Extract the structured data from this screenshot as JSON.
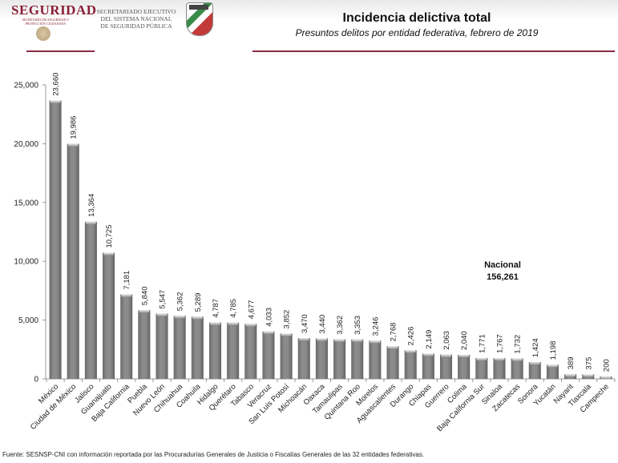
{
  "header": {
    "logo_text": "SEGURIDAD",
    "logo_subtext": "SECRETARÍA DE SEGURIDAD Y PROTECCIÓN CIUDADANA",
    "secretariado_lines": [
      "SECRETARIADO EJECUTIVO",
      "DEL SISTEMA NACIONAL",
      "DE SEGURIDAD PÚBLICA"
    ],
    "brand_color": "#8a1f37"
  },
  "title": "Incidencia delictiva total",
  "subtitle": "Presuntos delitos por entidad federativa, febrero de 2019",
  "footer": "Fuente: SESNSP-CNI con información reportada por las Procuradurías Generales de Justicia o Fiscalías Generales de las 32 entidades federativas.",
  "chart_data": {
    "type": "bar",
    "title": "Incidencia delictiva total",
    "subtitle": "Presuntos delitos por entidad federativa, febrero de 2019",
    "xlabel": "",
    "ylabel": "",
    "ylim": [
      0,
      25000
    ],
    "yticks": [
      0,
      5000,
      10000,
      15000,
      20000,
      25000
    ],
    "ytick_labels": [
      "0",
      "5,000",
      "10,000",
      "15,000",
      "20,000",
      "25,000"
    ],
    "grid": false,
    "bar_color": "#7f7f7f",
    "categories": [
      "México",
      "Ciudad de México",
      "Jalisco",
      "Guanajuato",
      "Baja California",
      "Puebla",
      "Nuevo León",
      "Chihuahua",
      "Coahuila",
      "Hidalgo",
      "Querétaro",
      "Tabasco",
      "Veracruz",
      "San Luis Potosí",
      "Michoacán",
      "Oaxaca",
      "Tamaulipas",
      "Quintana Roo",
      "Morelos",
      "Aguascalientes",
      "Durango",
      "Chiapas",
      "Guerrero",
      "Colima",
      "Baja California Sur",
      "Sinaloa",
      "Zacatecas",
      "Sonora",
      "Yucatán",
      "Nayarit",
      "Tlaxcala",
      "Campeche"
    ],
    "values": [
      23660,
      19986,
      13364,
      10725,
      7181,
      5840,
      5547,
      5362,
      5289,
      4787,
      4785,
      4677,
      4033,
      3852,
      3470,
      3440,
      3362,
      3353,
      3246,
      2768,
      2426,
      2149,
      2063,
      2040,
      1771,
      1767,
      1732,
      1424,
      1198,
      389,
      375,
      200
    ],
    "value_labels": [
      "23,660",
      "19,986",
      "13,364",
      "10,725",
      "7,181",
      "5,840",
      "5,547",
      "5,362",
      "5,289",
      "4,787",
      "4,785",
      "4,677",
      "4,033",
      "3,852",
      "3,470",
      "3,440",
      "3,362",
      "3,353",
      "3,246",
      "2,768",
      "2,426",
      "2,149",
      "2,063",
      "2,040",
      "1,771",
      "1,767",
      "1,732",
      "1,424",
      "1,198",
      "389",
      "375",
      "200"
    ],
    "annotations": [
      {
        "text": "Nacional",
        "value_text": "156,261"
      }
    ]
  }
}
